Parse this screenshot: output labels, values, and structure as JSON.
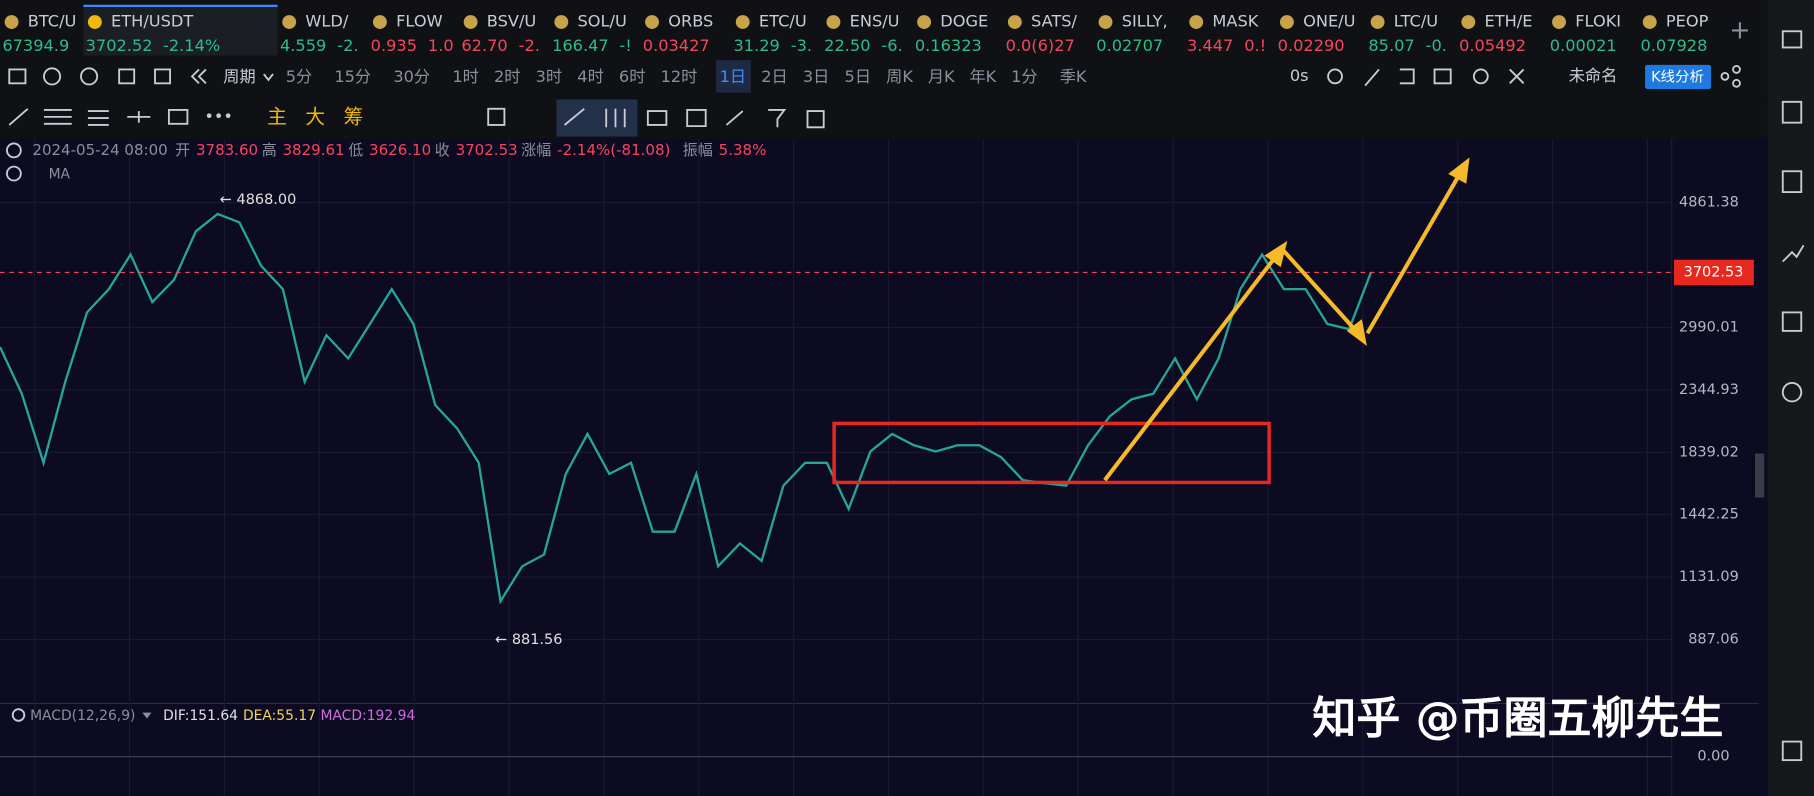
{
  "tabs": [
    {
      "name": "BTC/U",
      "price": "67394.9",
      "change": "",
      "color": "#2ebd85"
    },
    {
      "name": "ETH/USDT",
      "price": "3702.52",
      "change": "-2.14%",
      "color": "#2ebd85"
    },
    {
      "name": "WLD/",
      "price": "4.559",
      "change": "-2.",
      "color": "#2ebd85"
    },
    {
      "name": "FLOW",
      "price": "0.935",
      "change": "1.0",
      "color": "#f6465d"
    },
    {
      "name": "BSV/U",
      "price": "62.70",
      "change": "-2.",
      "color": "#f6465d"
    },
    {
      "name": "SOL/U",
      "price": "166.47",
      "change": "-!",
      "color": "#2ebd85"
    },
    {
      "name": "ORBS",
      "price": "0.03427",
      "change": "",
      "color": "#f6465d"
    },
    {
      "name": "ETC/U",
      "price": "31.29",
      "change": "-3.",
      "color": "#2ebd85"
    },
    {
      "name": "ENS/U",
      "price": "22.50",
      "change": "-6.",
      "color": "#2ebd85"
    },
    {
      "name": "DOGE",
      "price": "0.16323",
      "change": "",
      "color": "#2ebd85"
    },
    {
      "name": "SATS/",
      "price": "0.0(6)27",
      "change": "",
      "color": "#f6465d"
    },
    {
      "name": "SILLY,",
      "price": "0.02707",
      "change": "",
      "color": "#2ebd85"
    },
    {
      "name": "MASK",
      "price": "3.447",
      "change": "0.!",
      "color": "#f6465d"
    },
    {
      "name": "ONE/U",
      "price": "0.02290",
      "change": "",
      "color": "#f6465d"
    },
    {
      "name": "LTC/U",
      "price": "85.07",
      "change": "-0.",
      "color": "#2ebd85"
    },
    {
      "name": "ETH/E",
      "price": "0.05492",
      "change": "",
      "color": "#f6465d"
    },
    {
      "name": "FLOKI",
      "price": "0.00021",
      "change": "",
      "color": "#2ebd85"
    },
    {
      "name": "PEOP",
      "price": "0.07928",
      "change": "",
      "color": "#2ebd85"
    }
  ],
  "periods": {
    "label": "周期",
    "items": [
      "5分",
      "15分",
      "30分",
      "1时",
      "2时",
      "3时",
      "4时",
      "6时",
      "12时",
      "1日",
      "2日",
      "3日",
      "5日",
      "周K",
      "月K",
      "年K",
      "1分",
      "季K"
    ]
  },
  "toolbar_right": {
    "timer": "0s",
    "layout": "未命名",
    "button": "K线分析"
  },
  "drawing_tools": [
    "主",
    "大",
    "筹"
  ],
  "ohlc": {
    "date": "2024-05-24 08:00",
    "open_label": "开",
    "open": "3783.60",
    "high_label": "高",
    "high": "3829.61",
    "low_label": "低",
    "low": "3626.10",
    "close_label": "收",
    "close": "3702.53",
    "change_label": "涨幅",
    "change": "-2.14%(-81.08)",
    "amplitude_label": "振幅",
    "amplitude": "5.38%"
  },
  "indicator": "MA",
  "chart": {
    "type": "line",
    "log": true,
    "color": "#26a69a",
    "values": [
      2770,
      2310,
      1765,
      2420,
      3170,
      3470,
      3970,
      3300,
      3600,
      4345,
      4650,
      4500,
      3800,
      3470,
      2420,
      2900,
      2650,
      3030,
      3470,
      3030,
      2210,
      2020,
      1765,
      1030,
      1180,
      1235,
      1690,
      1975,
      1690,
      1765,
      1350,
      1350,
      1690,
      1180,
      1290,
      1205,
      1615,
      1765,
      1765,
      1475,
      1845,
      1975,
      1890,
      1845,
      1890,
      1890,
      1805,
      1650,
      1630,
      1615,
      1890,
      2115,
      2260,
      2310,
      2650,
      2260,
      2650,
      3470,
      3970,
      3470,
      3470,
      3030,
      2970,
      3702.53
    ],
    "ylim": [
      692,
      6228
    ],
    "yticks": [
      4861.38,
      2990.01,
      2344.93,
      1839.02,
      1442.25,
      1131.09,
      887.06
    ],
    "last_price": 3702.53,
    "high_note": "← 4868.00",
    "low_note": "← 881.56"
  },
  "macd": {
    "title": "MACD(12,26,9)",
    "dif": "DIF:151.64",
    "dea": "DEA:55.17",
    "macd": "MACD:192.94",
    "yticks": [
      {
        "value": 0,
        "label": "0.00"
      }
    ]
  },
  "watermark": "知乎 @币圈五柳先生"
}
